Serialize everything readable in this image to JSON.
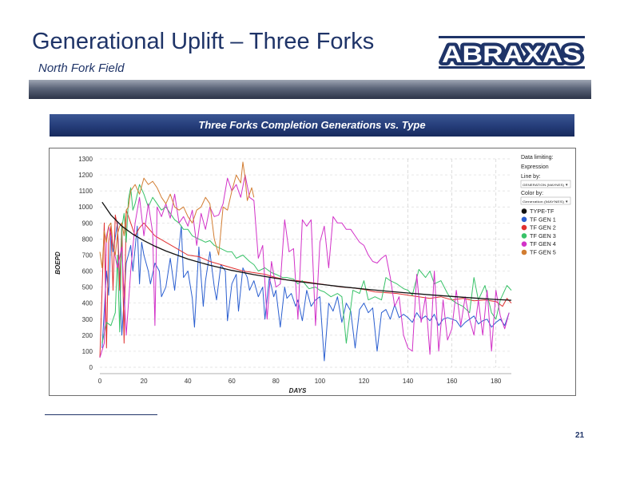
{
  "slide": {
    "title": "Generational Uplift – Three Forks",
    "subtitle": "North Fork Field",
    "logo_text": "ABRAXAS",
    "page_number": "21"
  },
  "chart_header": "Three Forks Completion Generations vs. Type",
  "chart_data": {
    "type": "line",
    "xlabel": "DAYS",
    "ylabel": "BOEPD",
    "xlim": [
      0,
      187
    ],
    "ylim": [
      0,
      1300
    ],
    "xticks": [
      0,
      20,
      40,
      60,
      80,
      100,
      120,
      140,
      160,
      180
    ],
    "yticks": [
      0,
      100,
      200,
      300,
      400,
      500,
      600,
      700,
      800,
      900,
      1000,
      1100,
      1200,
      1300
    ],
    "grid": "horizontal dashed",
    "legend_position": "right",
    "legend_controls": {
      "data_limiting": "Data limiting:",
      "expression": "Expression",
      "line_by": "Line by:",
      "line_by_value": "GENERATION (MAYNES)",
      "color_by": "Color by:",
      "color_by_value": "Generation (MAYNES)"
    },
    "series": [
      {
        "name": "TYPE-TF",
        "color": "#111111",
        "style": "smooth",
        "x": [
          1,
          5,
          10,
          15,
          20,
          25,
          30,
          40,
          50,
          60,
          70,
          80,
          90,
          100,
          110,
          120,
          130,
          140,
          150,
          160,
          170,
          180,
          187
        ],
        "y": [
          1030,
          950,
          880,
          830,
          790,
          755,
          725,
          675,
          636,
          604,
          578,
          555,
          535,
          518,
          502,
          488,
          475,
          463,
          452,
          442,
          432,
          423,
          418
        ]
      },
      {
        "name": "TF GEN 1",
        "color": "#2b5fd0",
        "x": [
          1,
          3,
          4,
          5,
          6,
          8,
          10,
          12,
          14,
          15,
          17,
          18,
          19,
          20,
          22,
          23,
          25,
          27,
          28,
          30,
          32,
          34,
          35,
          37,
          38,
          40,
          42,
          43,
          45,
          47,
          48,
          50,
          52,
          53,
          55,
          57,
          58,
          60,
          62,
          63,
          65,
          67,
          68,
          70,
          72,
          74,
          75,
          77,
          79,
          80,
          82,
          84,
          85,
          87,
          89,
          90,
          92,
          94,
          96,
          98,
          100,
          102,
          104,
          106,
          108,
          110,
          112,
          114,
          116,
          118,
          120,
          122,
          124,
          126,
          128,
          130,
          132,
          134,
          136,
          138,
          140,
          142,
          144,
          146,
          148,
          150,
          152,
          154,
          156,
          158,
          160,
          162,
          164,
          166,
          168,
          170,
          172,
          174,
          176,
          178,
          180,
          182,
          184,
          186
        ],
        "y": [
          120,
          600,
          450,
          840,
          720,
          900,
          200,
          650,
          760,
          600,
          880,
          520,
          780,
          700,
          600,
          520,
          650,
          600,
          440,
          500,
          680,
          480,
          620,
          880,
          560,
          600,
          430,
          250,
          750,
          380,
          540,
          720,
          500,
          420,
          640,
          600,
          290,
          520,
          580,
          350,
          620,
          560,
          480,
          540,
          440,
          500,
          300,
          560,
          440,
          480,
          250,
          500,
          430,
          460,
          380,
          420,
          290,
          480,
          380,
          420,
          440,
          40,
          400,
          350,
          440,
          280,
          400,
          350,
          120,
          360,
          400,
          340,
          370,
          100,
          340,
          360,
          300,
          390,
          310,
          330,
          310,
          280,
          340,
          300,
          320,
          290,
          330,
          260,
          300,
          310,
          300,
          290,
          250,
          280,
          300,
          320,
          270,
          290,
          300,
          250,
          280,
          300,
          260,
          340
        ]
      },
      {
        "name": "TF GEN 2",
        "color": "#e03030",
        "x": [
          0,
          2,
          3,
          4,
          5,
          6,
          7,
          8,
          9,
          10,
          11,
          12,
          14,
          16,
          18,
          20,
          25,
          30,
          35,
          40,
          45,
          50,
          55,
          60,
          65,
          70,
          75,
          80,
          85,
          90,
          95,
          100,
          105,
          110,
          115,
          120,
          125,
          130,
          135,
          140,
          145,
          150,
          155,
          160,
          165,
          170,
          175,
          180,
          183,
          185,
          187
        ],
        "y": [
          60,
          900,
          120,
          780,
          880,
          480,
          950,
          880,
          480,
          900,
          150,
          980,
          900,
          820,
          870,
          900,
          820,
          780,
          740,
          700,
          690,
          660,
          640,
          620,
          600,
          590,
          580,
          560,
          545,
          540,
          530,
          520,
          510,
          500,
          495,
          485,
          470,
          465,
          460,
          450,
          440,
          430,
          440,
          420,
          430,
          415,
          420,
          410,
          380,
          430,
          400
        ]
      },
      {
        "name": "TF GEN 3",
        "color": "#38c268",
        "x": [
          1,
          3,
          5,
          7,
          8,
          9,
          10,
          11,
          12,
          13,
          14,
          15,
          16,
          18,
          20,
          22,
          24,
          26,
          28,
          30,
          32,
          34,
          36,
          38,
          40,
          42,
          45,
          48,
          50,
          52,
          55,
          58,
          60,
          62,
          65,
          68,
          70,
          72,
          75,
          78,
          80,
          83,
          85,
          88,
          90,
          92,
          95,
          98,
          100,
          102,
          105,
          108,
          110,
          112,
          115,
          118,
          120,
          122,
          125,
          128,
          130,
          132,
          135,
          138,
          140,
          142,
          145,
          148,
          150,
          152,
          155,
          158,
          160,
          162,
          165,
          168,
          170,
          172,
          175,
          178,
          180,
          182,
          185,
          187
        ],
        "y": [
          150,
          280,
          260,
          340,
          700,
          220,
          870,
          960,
          780,
          1050,
          1120,
          980,
          1020,
          1140,
          1080,
          1000,
          1060,
          1020,
          980,
          1000,
          960,
          920,
          900,
          860,
          860,
          820,
          800,
          780,
          790,
          760,
          740,
          720,
          720,
          680,
          700,
          660,
          640,
          600,
          620,
          590,
          580,
          560,
          560,
          550,
          520,
          540,
          490,
          500,
          480,
          470,
          440,
          460,
          440,
          150,
          480,
          460,
          540,
          420,
          440,
          420,
          560,
          540,
          520,
          490,
          480,
          450,
          610,
          560,
          600,
          520,
          540,
          460,
          420,
          400,
          380,
          340,
          560,
          420,
          510,
          340,
          300,
          420,
          510,
          480
        ]
      },
      {
        "name": "TF GEN 4",
        "color": "#d232c8",
        "x": [
          0,
          2,
          3,
          4,
          6,
          8,
          10,
          12,
          14,
          16,
          18,
          20,
          22,
          24,
          25,
          26,
          28,
          30,
          32,
          34,
          36,
          38,
          40,
          42,
          44,
          46,
          48,
          50,
          52,
          54,
          56,
          58,
          60,
          62,
          64,
          66,
          68,
          70,
          72,
          74,
          76,
          78,
          80,
          82,
          84,
          86,
          88,
          90,
          92,
          94,
          96,
          98,
          100,
          102,
          104,
          106,
          108,
          110,
          112,
          114,
          116,
          118,
          120,
          122,
          124,
          126,
          128,
          130,
          132,
          134,
          136,
          138,
          140,
          142,
          144,
          146,
          148,
          150,
          152,
          154,
          156,
          158,
          160,
          162,
          164,
          166,
          168,
          170,
          172,
          174,
          176,
          178,
          180,
          182,
          184,
          186
        ],
        "y": [
          60,
          150,
          820,
          880,
          760,
          620,
          750,
          200,
          600,
          900,
          1060,
          820,
          1020,
          840,
          260,
          1000,
          940,
          1020,
          930,
          1080,
          900,
          940,
          880,
          980,
          760,
          960,
          860,
          1000,
          940,
          950,
          1020,
          1180,
          1100,
          1140,
          1060,
          1200,
          1060,
          1040,
          680,
          760,
          300,
          660,
          500,
          520,
          920,
          720,
          740,
          300,
          920,
          880,
          920,
          260,
          780,
          880,
          620,
          940,
          900,
          900,
          860,
          860,
          820,
          780,
          760,
          700,
          660,
          650,
          680,
          700,
          560,
          380,
          440,
          200,
          120,
          100,
          580,
          280,
          440,
          80,
          600,
          100,
          420,
          170,
          240,
          480,
          260,
          440,
          300,
          200,
          420,
          200,
          480,
          100,
          480,
          320,
          240,
          340
        ]
      },
      {
        "name": "TF GEN 5",
        "color": "#d27d32",
        "x": [
          0,
          1,
          2,
          3,
          4,
          5,
          6,
          7,
          8,
          9,
          10,
          11,
          12,
          13,
          14,
          16,
          18,
          20,
          22,
          24,
          26,
          28,
          30,
          32,
          34,
          36,
          38,
          40,
          42,
          44,
          46,
          48,
          50,
          52,
          54,
          56,
          58,
          60,
          62,
          64,
          65,
          66,
          67,
          68,
          69,
          70
        ],
        "y": [
          720,
          620,
          850,
          780,
          880,
          900,
          760,
          700,
          830,
          880,
          900,
          820,
          980,
          1000,
          1100,
          1140,
          1080,
          1180,
          1140,
          1160,
          1120,
          1060,
          1020,
          1080,
          1000,
          980,
          1000,
          940,
          900,
          980,
          1000,
          1060,
          1020,
          800,
          700,
          1000,
          980,
          1100,
          1200,
          1150,
          1280,
          1180,
          1040,
          1080,
          1120,
          1060
        ]
      }
    ]
  }
}
